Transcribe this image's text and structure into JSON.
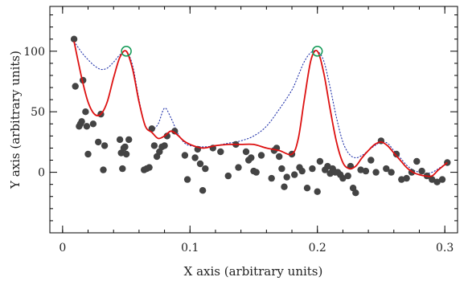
{
  "chart_data": {
    "type": "scatter",
    "xlabel": "X axis (arbitrary units)",
    "ylabel": "Y axis (arbitrary units)",
    "xlim": [
      -0.01,
      0.31
    ],
    "ylim": [
      -50,
      137
    ],
    "xticks": [
      0,
      0.1,
      0.2,
      0.3
    ],
    "xtick_labels": [
      "0",
      "0.1",
      "0.2",
      "0.3"
    ],
    "yticks": [
      0,
      50,
      100
    ],
    "ytick_labels": [
      "0",
      "50",
      "100"
    ],
    "grid": false,
    "colors": {
      "points": "#444444",
      "fit": "#dd1111",
      "model": "#2233aa",
      "markers": "#119955"
    },
    "series": [
      {
        "style": "scatter",
        "x": [
          0.009,
          0.01,
          0.013,
          0.014,
          0.015,
          0.016,
          0.018,
          0.019,
          0.02,
          0.024,
          0.028,
          0.03,
          0.032,
          0.033,
          0.045,
          0.046,
          0.047,
          0.048,
          0.049,
          0.05,
          0.052,
          0.064,
          0.066,
          0.068,
          0.07,
          0.072,
          0.074,
          0.076,
          0.078,
          0.08,
          0.082,
          0.088,
          0.096,
          0.098,
          0.104,
          0.106,
          0.108,
          0.11,
          0.112,
          0.118,
          0.124,
          0.13,
          0.136,
          0.138,
          0.144,
          0.146,
          0.148,
          0.15,
          0.152,
          0.156,
          0.164,
          0.166,
          0.168,
          0.17,
          0.172,
          0.174,
          0.176,
          0.18,
          0.182,
          0.186,
          0.188,
          0.192,
          0.196,
          0.2,
          0.202,
          0.206,
          0.208,
          0.21,
          0.212,
          0.214,
          0.216,
          0.218,
          0.22,
          0.224,
          0.226,
          0.228,
          0.23,
          0.234,
          0.238,
          0.242,
          0.246,
          0.25,
          0.254,
          0.258,
          0.262,
          0.266,
          0.27,
          0.274,
          0.278,
          0.282,
          0.286,
          0.29,
          0.294,
          0.298,
          0.302
        ],
        "y": [
          110,
          71,
          38,
          40,
          42,
          76,
          50,
          38,
          15,
          40,
          25,
          48,
          2,
          22,
          27,
          16,
          3,
          20,
          21,
          15,
          27,
          2,
          3,
          4,
          36,
          22,
          13,
          17,
          21,
          22,
          30,
          34,
          14,
          -6,
          12,
          19,
          7,
          -15,
          3,
          20,
          17,
          -3,
          23,
          4,
          17,
          10,
          12,
          1,
          0,
          14,
          -5,
          18,
          20,
          13,
          3,
          -12,
          -4,
          15,
          -2,
          4,
          1,
          -13,
          3,
          -16,
          9,
          2,
          5,
          -1,
          3,
          0,
          0,
          -2,
          -5,
          -3,
          5,
          -13,
          -17,
          2,
          1,
          10,
          0,
          26,
          3,
          0,
          15,
          -6,
          -5,
          0,
          9,
          1,
          -3,
          -6,
          -8,
          -6,
          8
        ],
        "marker": "filled-circle"
      },
      {
        "style": "solid-line",
        "x": [
          0.009,
          0.015,
          0.02,
          0.025,
          0.03,
          0.035,
          0.04,
          0.045,
          0.05,
          0.055,
          0.06,
          0.065,
          0.07,
          0.075,
          0.08,
          0.085,
          0.09,
          0.095,
          0.1,
          0.11,
          0.12,
          0.13,
          0.14,
          0.15,
          0.16,
          0.17,
          0.18,
          0.185,
          0.19,
          0.195,
          0.2,
          0.205,
          0.21,
          0.215,
          0.22,
          0.225,
          0.23,
          0.235,
          0.24,
          0.245,
          0.25,
          0.255,
          0.26,
          0.265,
          0.27,
          0.275,
          0.28,
          0.285,
          0.29,
          0.295,
          0.302
        ],
        "y": [
          108,
          78,
          58,
          48,
          48,
          58,
          78,
          95,
          100,
          85,
          58,
          38,
          33,
          28,
          30,
          34,
          31,
          26,
          23,
          20,
          22,
          23,
          23,
          23,
          20,
          18,
          15,
          28,
          62,
          93,
          100,
          82,
          52,
          25,
          8,
          3,
          5,
          12,
          18,
          23,
          25,
          22,
          16,
          10,
          4,
          0,
          -2,
          -3,
          -3,
          2,
          8
        ],
        "line": "solid"
      },
      {
        "style": "dotted-line",
        "x": [
          0.009,
          0.015,
          0.02,
          0.025,
          0.03,
          0.035,
          0.04,
          0.045,
          0.05,
          0.055,
          0.06,
          0.065,
          0.07,
          0.075,
          0.08,
          0.085,
          0.09,
          0.095,
          0.1,
          0.11,
          0.12,
          0.13,
          0.14,
          0.15,
          0.16,
          0.17,
          0.18,
          0.185,
          0.19,
          0.195,
          0.2,
          0.205,
          0.21,
          0.215,
          0.22,
          0.225,
          0.23,
          0.235,
          0.24,
          0.245,
          0.25,
          0.255,
          0.26,
          0.265,
          0.27,
          0.275,
          0.28,
          0.285,
          0.29,
          0.295,
          0.302
        ],
        "y": [
          108,
          99,
          93,
          88,
          85,
          86,
          91,
          97,
          100,
          88,
          60,
          38,
          35,
          40,
          53,
          45,
          33,
          25,
          22,
          21,
          22,
          24,
          26,
          30,
          38,
          52,
          68,
          80,
          92,
          99,
          100,
          92,
          70,
          45,
          25,
          15,
          12,
          14,
          18,
          22,
          25,
          24,
          18,
          12,
          6,
          2,
          0,
          -1,
          0,
          3,
          8
        ],
        "line": "dotted"
      },
      {
        "style": "open-circle",
        "x": [
          0.05,
          0.2
        ],
        "y": [
          100,
          100
        ],
        "marker": "open-circle"
      }
    ]
  }
}
